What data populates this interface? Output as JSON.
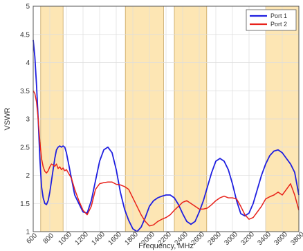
{
  "chart_data": {
    "type": "line",
    "xlabel": "Frequency, MHz",
    "ylabel": "VSWR",
    "xlim": [
      600,
      3800
    ],
    "ylim": [
      1,
      5
    ],
    "xticks": [
      600,
      800,
      1000,
      1200,
      1400,
      1600,
      1800,
      2000,
      2200,
      2400,
      2600,
      2800,
      3000,
      3200,
      3400,
      3600,
      3800
    ],
    "yticks": [
      1,
      1.5,
      2,
      2.5,
      3,
      3.5,
      4,
      4.5,
      5
    ],
    "xtick_labels": [
      "600",
      "800",
      "1000",
      "1200",
      "1400",
      "1600",
      "1800",
      "2000",
      "2200",
      "2400",
      "2600",
      "2800",
      "3000",
      "3200",
      "3400",
      "3600",
      "3800"
    ],
    "ytick_labels": [
      "1",
      "1.5",
      "2",
      "2.5",
      "3",
      "3.5",
      "4",
      "4.5",
      "5"
    ],
    "grid": true,
    "legend_position": "top-right",
    "colors": {
      "band_fill": "#fde6b4",
      "band_stroke": "#c8a560",
      "grid": "#dddddd",
      "axis": "#555555"
    },
    "bands": [
      {
        "start": 690,
        "end": 960
      },
      {
        "start": 1710,
        "end": 2170
      },
      {
        "start": 2300,
        "end": 2690
      },
      {
        "start": 3400,
        "end": 3800
      }
    ],
    "series": [
      {
        "name": "Port 1",
        "color": "#1f1fe0",
        "x": [
          600,
          620,
          640,
          660,
          680,
          700,
          720,
          740,
          760,
          780,
          800,
          820,
          840,
          860,
          880,
          900,
          920,
          940,
          960,
          980,
          1000,
          1020,
          1040,
          1060,
          1080,
          1100,
          1150,
          1200,
          1250,
          1300,
          1350,
          1400,
          1450,
          1500,
          1550,
          1600,
          1650,
          1700,
          1750,
          1800,
          1850,
          1900,
          1950,
          2000,
          2050,
          2100,
          2150,
          2200,
          2250,
          2300,
          2350,
          2400,
          2450,
          2500,
          2550,
          2600,
          2650,
          2700,
          2750,
          2800,
          2850,
          2900,
          2950,
          3000,
          3050,
          3100,
          3150,
          3200,
          3250,
          3300,
          3350,
          3400,
          3450,
          3500,
          3550,
          3600,
          3650,
          3700,
          3750,
          3800
        ],
        "values": [
          4.4,
          4.1,
          3.6,
          3.0,
          2.3,
          1.8,
          1.6,
          1.5,
          1.48,
          1.55,
          1.7,
          1.9,
          2.1,
          2.3,
          2.45,
          2.5,
          2.52,
          2.5,
          2.52,
          2.5,
          2.4,
          2.25,
          2.1,
          1.95,
          1.8,
          1.65,
          1.5,
          1.35,
          1.33,
          1.55,
          1.9,
          2.25,
          2.45,
          2.5,
          2.4,
          2.1,
          1.7,
          1.4,
          1.2,
          1.05,
          1.0,
          1.08,
          1.25,
          1.45,
          1.55,
          1.6,
          1.63,
          1.65,
          1.65,
          1.6,
          1.48,
          1.32,
          1.18,
          1.13,
          1.18,
          1.35,
          1.55,
          1.8,
          2.05,
          2.25,
          2.3,
          2.25,
          2.1,
          1.85,
          1.55,
          1.32,
          1.28,
          1.33,
          1.5,
          1.75,
          2.0,
          2.2,
          2.35,
          2.43,
          2.45,
          2.4,
          2.3,
          2.2,
          2.05,
          1.65
        ]
      },
      {
        "name": "Port 2",
        "color": "#e8211a",
        "x": [
          600,
          620,
          640,
          660,
          680,
          700,
          720,
          740,
          760,
          780,
          800,
          820,
          840,
          860,
          880,
          900,
          920,
          940,
          960,
          980,
          1000,
          1020,
          1040,
          1060,
          1080,
          1100,
          1150,
          1200,
          1250,
          1300,
          1350,
          1400,
          1450,
          1500,
          1550,
          1600,
          1650,
          1700,
          1750,
          1800,
          1850,
          1900,
          1950,
          2000,
          2050,
          2100,
          2150,
          2200,
          2250,
          2300,
          2350,
          2400,
          2450,
          2500,
          2550,
          2600,
          2650,
          2700,
          2750,
          2800,
          2850,
          2900,
          2950,
          3000,
          3050,
          3100,
          3150,
          3200,
          3250,
          3300,
          3350,
          3400,
          3450,
          3500,
          3550,
          3600,
          3650,
          3700,
          3750,
          3800
        ],
        "values": [
          3.5,
          3.45,
          3.3,
          3.0,
          2.6,
          2.3,
          2.15,
          2.07,
          2.04,
          2.08,
          2.15,
          2.2,
          2.18,
          2.16,
          2.2,
          2.12,
          2.15,
          2.1,
          2.13,
          2.08,
          2.1,
          2.05,
          2.0,
          1.95,
          1.85,
          1.75,
          1.55,
          1.38,
          1.3,
          1.45,
          1.75,
          1.85,
          1.87,
          1.88,
          1.88,
          1.84,
          1.83,
          1.8,
          1.75,
          1.6,
          1.45,
          1.3,
          1.18,
          1.1,
          1.12,
          1.18,
          1.22,
          1.25,
          1.3,
          1.38,
          1.45,
          1.52,
          1.55,
          1.5,
          1.45,
          1.4,
          1.4,
          1.42,
          1.48,
          1.55,
          1.6,
          1.63,
          1.6,
          1.6,
          1.58,
          1.45,
          1.3,
          1.22,
          1.25,
          1.35,
          1.45,
          1.58,
          1.62,
          1.65,
          1.7,
          1.65,
          1.75,
          1.85,
          1.65,
          1.38
        ]
      }
    ]
  }
}
